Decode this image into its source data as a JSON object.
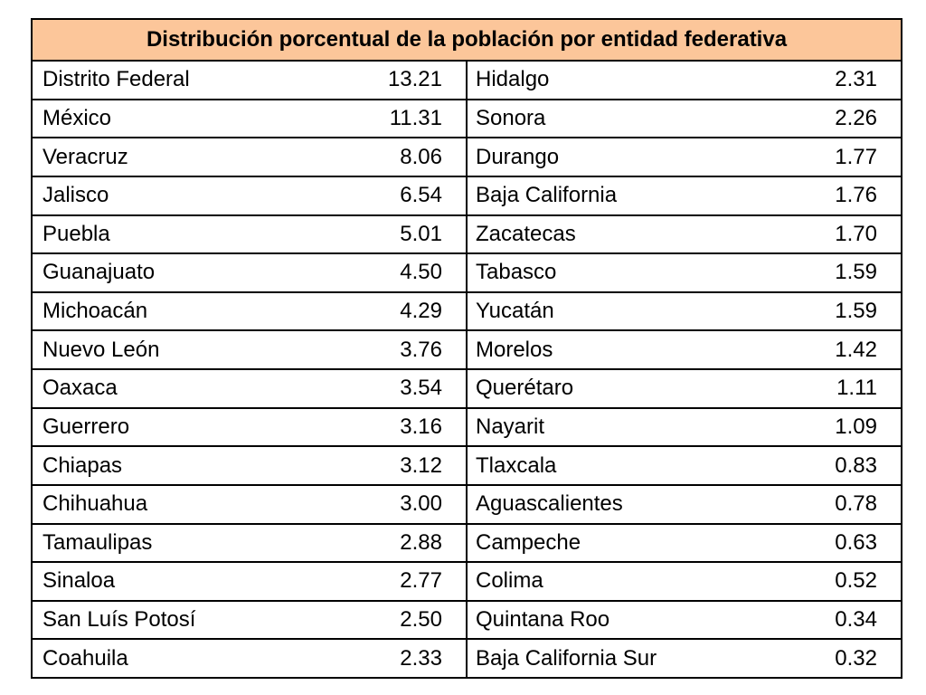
{
  "table": {
    "title": "Distribución porcentual de la población por entidad federativa",
    "left_column": [
      {
        "state": "Distrito Federal",
        "value": "13.21"
      },
      {
        "state": "México",
        "value": "11.31"
      },
      {
        "state": "Veracruz",
        "value": "8.06"
      },
      {
        "state": "Jalisco",
        "value": "6.54"
      },
      {
        "state": "Puebla",
        "value": "5.01"
      },
      {
        "state": "Guanajuato",
        "value": "4.50"
      },
      {
        "state": "Michoacán",
        "value": "4.29"
      },
      {
        "state": "Nuevo León",
        "value": "3.76"
      },
      {
        "state": "Oaxaca",
        "value": "3.54"
      },
      {
        "state": "Guerrero",
        "value": "3.16"
      },
      {
        "state": "Chiapas",
        "value": "3.12"
      },
      {
        "state": "Chihuahua",
        "value": "3.00"
      },
      {
        "state": "Tamaulipas",
        "value": "2.88"
      },
      {
        "state": "Sinaloa",
        "value": "2.77"
      },
      {
        "state": "San Luís Potosí",
        "value": "2.50"
      },
      {
        "state": "Coahuila",
        "value": "2.33"
      }
    ],
    "right_column": [
      {
        "state": "Hidalgo",
        "value": "2.31"
      },
      {
        "state": "Sonora",
        "value": "2.26"
      },
      {
        "state": "Durango",
        "value": "1.77"
      },
      {
        "state": "Baja California",
        "value": "1.76"
      },
      {
        "state": "Zacatecas",
        "value": "1.70"
      },
      {
        "state": "Tabasco",
        "value": "1.59"
      },
      {
        "state": "Yucatán",
        "value": "1.59"
      },
      {
        "state": "Morelos",
        "value": "1.42"
      },
      {
        "state": "Querétaro",
        "value": "1.11"
      },
      {
        "state": "Nayarit",
        "value": "1.09"
      },
      {
        "state": "Tlaxcala",
        "value": "0.83"
      },
      {
        "state": "Aguascalientes",
        "value": "0.78"
      },
      {
        "state": "Campeche",
        "value": "0.63"
      },
      {
        "state": "Colima",
        "value": "0.52"
      },
      {
        "state": "Quintana Roo",
        "value": "0.34"
      },
      {
        "state": "Baja California Sur",
        "value": "0.32"
      }
    ],
    "header_color": "#fcc69a",
    "border_color": "#000000"
  }
}
